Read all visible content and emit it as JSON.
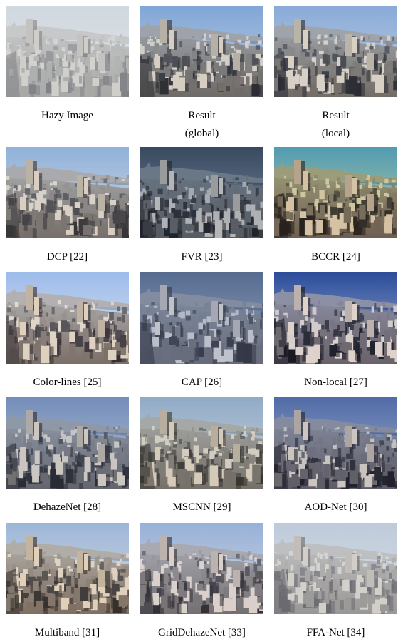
{
  "figure": {
    "rows": [
      [
        {
          "caption": [
            "Hazy Image"
          ],
          "sky_top": "#c9d3dc",
          "sky_bottom": "#dfe3e6",
          "city": "#8a8a86",
          "light": "#c7c3bb",
          "shadow": "#4e4e52",
          "haze": 0.35
        },
        {
          "caption": [
            "Result",
            "(global)"
          ],
          "sky_top": "#7da3d6",
          "sky_bottom": "#c4d2e2",
          "city": "#6a6560",
          "light": "#d8cdbf",
          "shadow": "#24242a",
          "haze": 0.05
        },
        {
          "caption": [
            "Result",
            "(local)"
          ],
          "sky_top": "#86a8d8",
          "sky_bottom": "#c6d3e2",
          "city": "#6e6760",
          "light": "#dbd0c2",
          "shadow": "#23232a",
          "haze": 0.05
        }
      ],
      [
        {
          "caption": [
            "DCP [22]"
          ],
          "sky_top": "#8aaed8",
          "sky_bottom": "#d3dde6",
          "city": "#6e6660",
          "light": "#d9cebd",
          "shadow": "#2a282a",
          "haze": 0.08
        },
        {
          "caption": [
            "FVR [23]"
          ],
          "sky_top": "#36465c",
          "sky_bottom": "#7b8fa5",
          "city": "#565a60",
          "light": "#b8b8b8",
          "shadow": "#1c1e24",
          "haze": 0.05
        },
        {
          "caption": [
            "BCCR [24]"
          ],
          "sky_top": "#4f9bb3",
          "sky_bottom": "#c2cf9c",
          "city": "#6c5d50",
          "light": "#d6c1a4",
          "shadow": "#241e1c",
          "haze": 0.02
        }
      ],
      [
        {
          "caption": [
            "Color-lines [25]"
          ],
          "sky_top": "#9ab9ea",
          "sky_bottom": "#dfe6ef",
          "city": "#766860",
          "light": "#e0cfbc",
          "shadow": "#2a2228",
          "haze": 0.06
        },
        {
          "caption": [
            "CAP [26]"
          ],
          "sky_top": "#4e648a",
          "sky_bottom": "#97a8c0",
          "city": "#616473",
          "light": "#c6c6cc",
          "shadow": "#272a36",
          "haze": 0.12
        },
        {
          "caption": [
            "Non-local [27]"
          ],
          "sky_top": "#2a4a9a",
          "sky_bottom": "#a8b6d6",
          "city": "#6a6068",
          "light": "#e0d3cb",
          "shadow": "#161620",
          "haze": 0.02
        }
      ],
      [
        {
          "caption": [
            "DehazeNet [28]"
          ],
          "sky_top": "#6f8ab8",
          "sky_bottom": "#b4c2d5",
          "city": "#5e5e66",
          "light": "#cfc7bd",
          "shadow": "#1e2028",
          "haze": 0.08
        },
        {
          "caption": [
            "MSCNN [29]"
          ],
          "sky_top": "#8aa6c6",
          "sky_bottom": "#cbd5d8",
          "city": "#6c655d",
          "light": "#d6c8b4",
          "shadow": "#26231f",
          "haze": 0.1
        },
        {
          "caption": [
            "AOD-Net [30]"
          ],
          "sky_top": "#4e68a6",
          "sky_bottom": "#a2b2cc",
          "city": "#5c5962",
          "light": "#cfc6bf",
          "shadow": "#1a1a24",
          "haze": 0.05
        }
      ],
      [
        {
          "caption": [
            "Multiband [31]"
          ],
          "sky_top": "#9ab4d8",
          "sky_bottom": "#d8dde0",
          "city": "#7a6a5c",
          "light": "#e2cfb5",
          "shadow": "#2a2420",
          "haze": 0.06
        },
        {
          "caption": [
            "GridDehazeNet [33]"
          ],
          "sky_top": "#92aed6",
          "sky_bottom": "#d3dae6",
          "city": "#6c6768",
          "light": "#dccfc8",
          "shadow": "#252228",
          "haze": 0.08
        },
        {
          "caption": [
            "FFA-Net [34]"
          ],
          "sky_top": "#b4c4d8",
          "sky_bottom": "#dcdfe3",
          "city": "#84807c",
          "light": "#cfc8bf",
          "shadow": "#44434a",
          "haze": 0.25
        }
      ]
    ]
  }
}
